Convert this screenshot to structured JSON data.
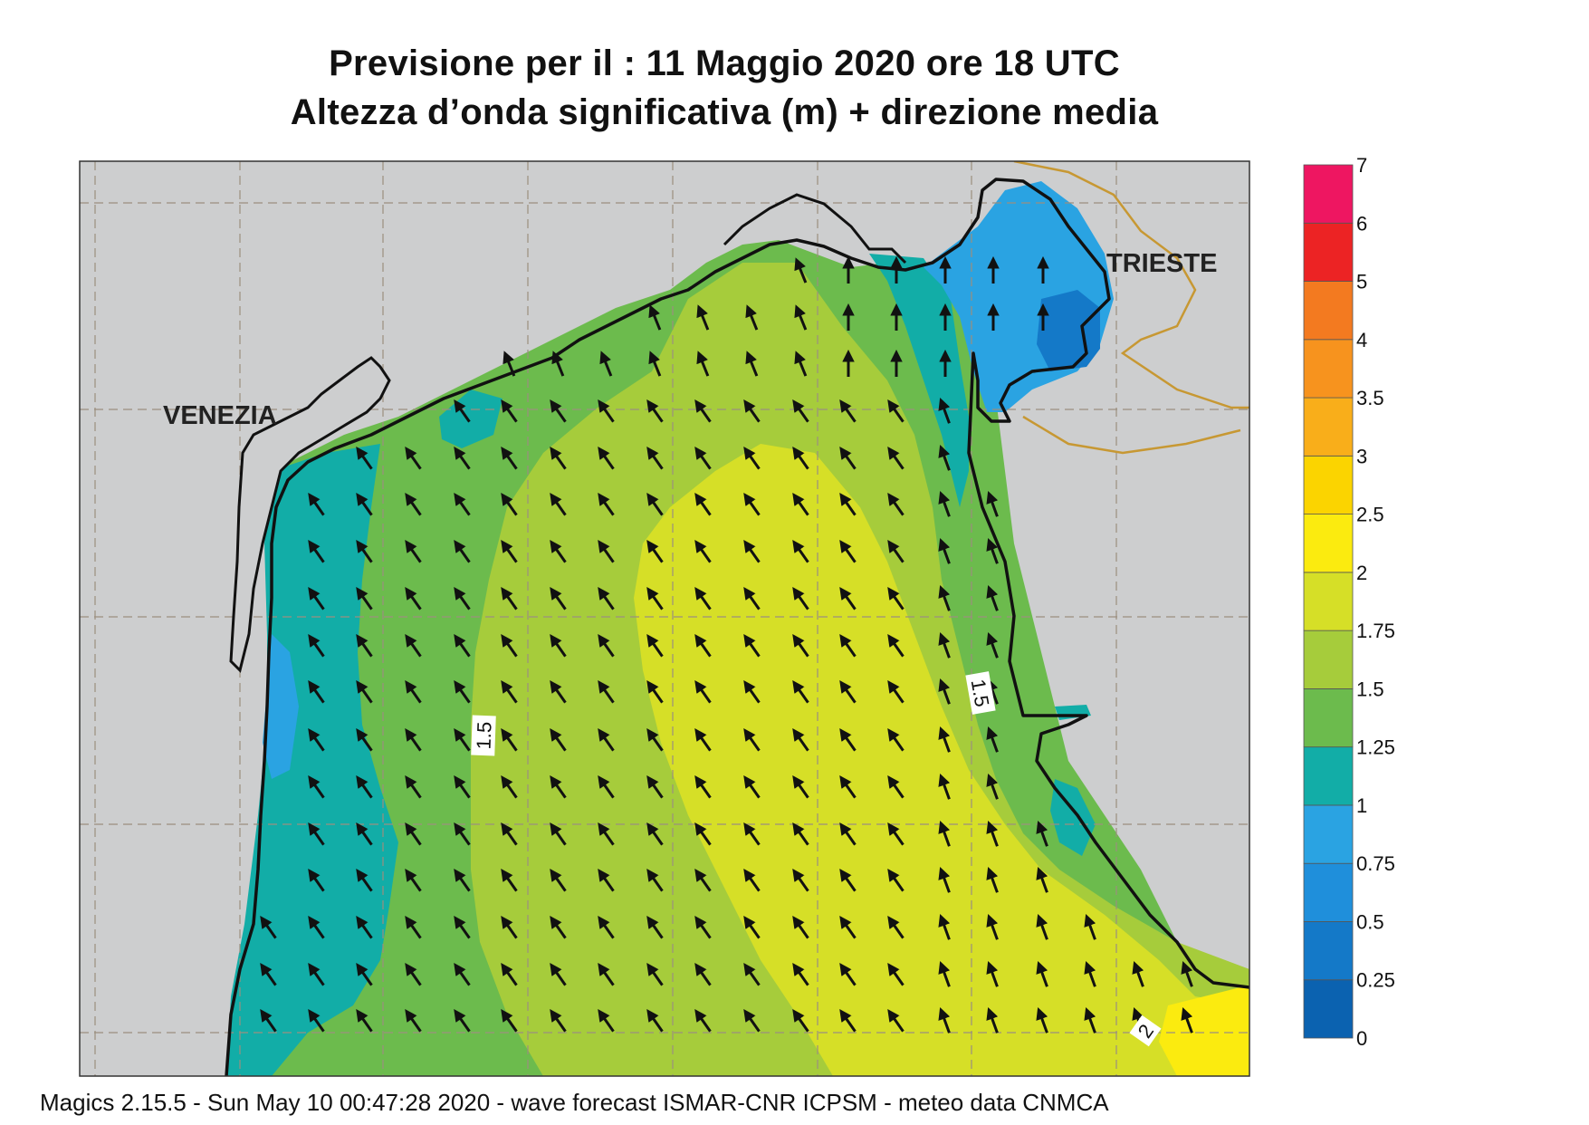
{
  "title": {
    "line1": "Previsione per il  :  11   Maggio  2020   ore 18 UTC",
    "line2": "Altezza d’onda significativa (m) + direzione media"
  },
  "cities": {
    "venezia": "VENEZIA",
    "trieste": "TRIESTE"
  },
  "contour_labels": [
    "1.5",
    "1.5",
    "2"
  ],
  "colorbar": {
    "levels": [
      "0",
      "0.25",
      "0.5",
      "0.75",
      "1",
      "1.25",
      "1.5",
      "1.75",
      "2",
      "2.5",
      "3",
      "3.5",
      "4",
      "5",
      "6",
      "7"
    ],
    "colors": [
      "#0b62b0",
      "#1479c8",
      "#1f8fdb",
      "#2aa3e2",
      "#12ada7",
      "#6cbb4d",
      "#a6cc3b",
      "#d6df27",
      "#fbeb0f",
      "#fbd400",
      "#f9ae1a",
      "#f7931e",
      "#f37a20",
      "#ec2324",
      "#ee1661"
    ]
  },
  "land_color": "#cdcecf",
  "footer": "Magics 2.15.5 - Sun May 10 00:47:28 2020 - wave forecast  ISMAR-CNR  ICPSM - meteo data   CNMCA"
}
